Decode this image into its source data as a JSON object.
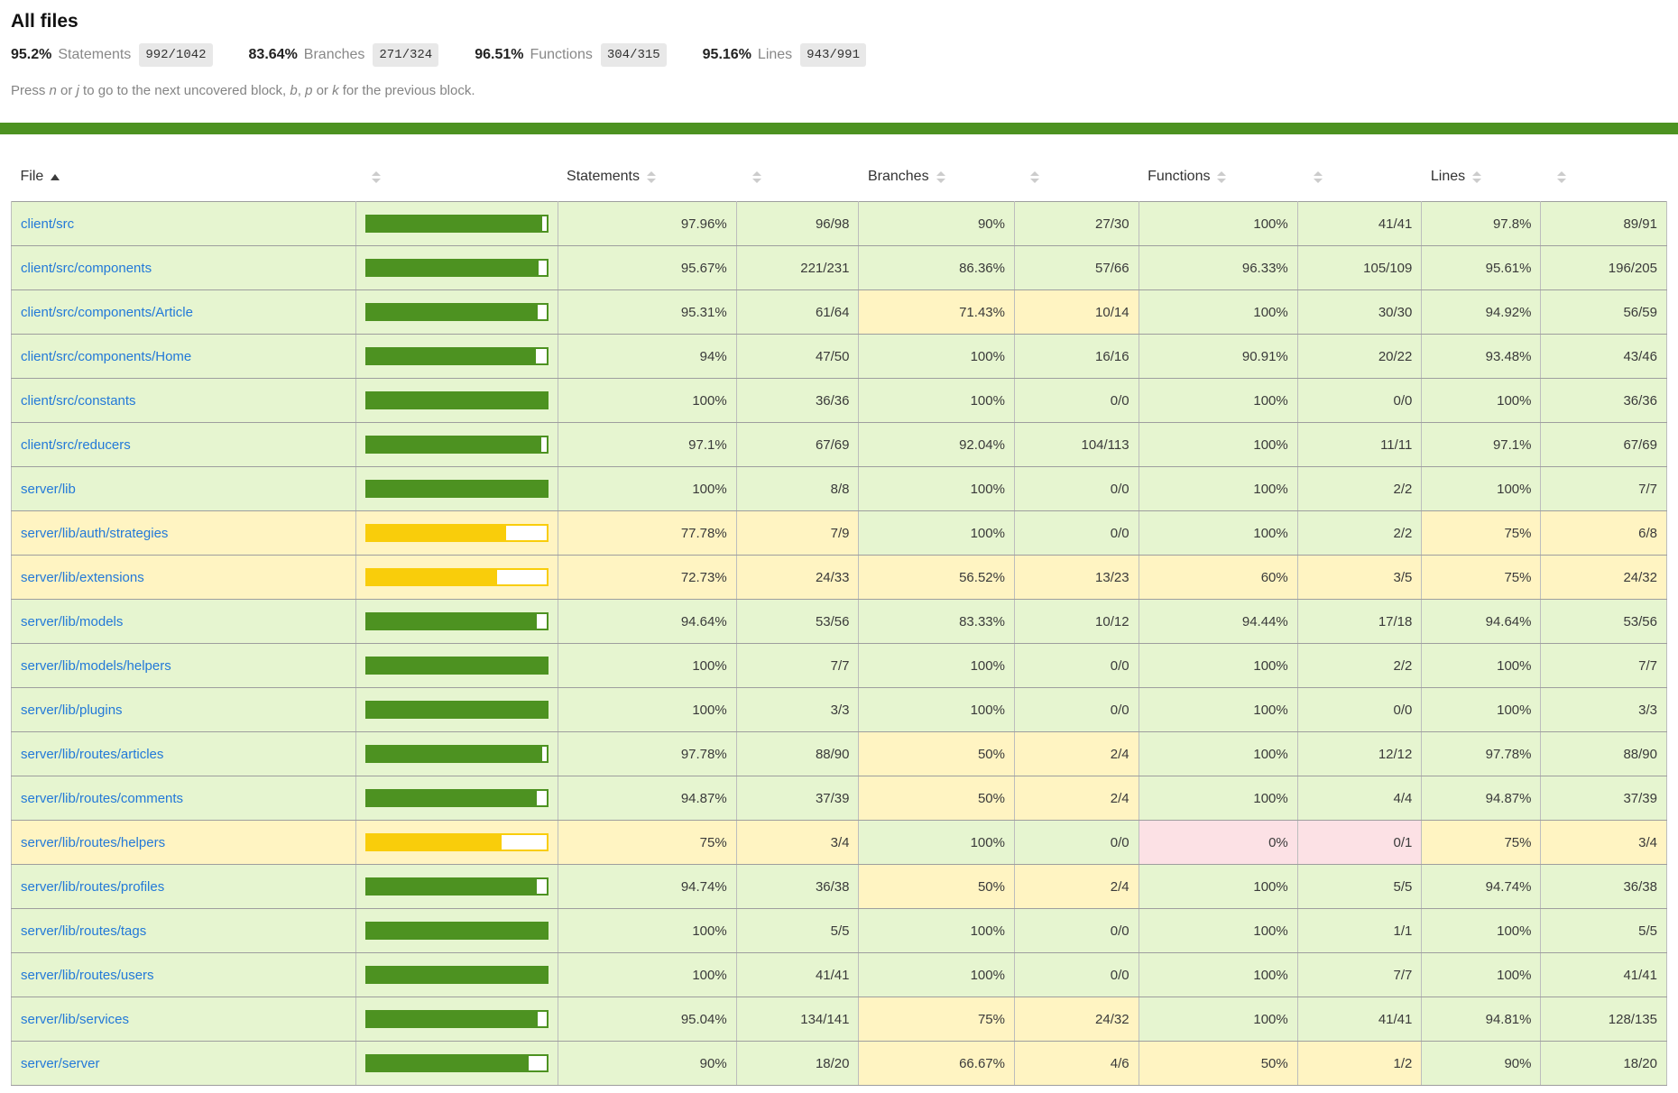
{
  "colors": {
    "accent_green": "#4d9221",
    "bar_yellow": "#f9cd0b",
    "bg_high": "#e6f5d0",
    "bg_medium": "#fff4c2",
    "bg_low": "#fce1e5",
    "link_blue": "#2379d8",
    "pill_bg": "#e8e8e8"
  },
  "header": {
    "title": "All files",
    "summary": [
      {
        "pct": "95.2%",
        "label": "Statements",
        "frac": "992/1042"
      },
      {
        "pct": "83.64%",
        "label": "Branches",
        "frac": "271/324"
      },
      {
        "pct": "96.51%",
        "label": "Functions",
        "frac": "304/315"
      },
      {
        "pct": "95.16%",
        "label": "Lines",
        "frac": "943/991"
      }
    ],
    "hint_segments": [
      {
        "t": "Press "
      },
      {
        "t": "n",
        "i": true
      },
      {
        "t": " or "
      },
      {
        "t": "j",
        "i": true
      },
      {
        "t": " to go to the next uncovered block, "
      },
      {
        "t": "b",
        "i": true
      },
      {
        "t": ", "
      },
      {
        "t": "p",
        "i": true
      },
      {
        "t": " or "
      },
      {
        "t": "k",
        "i": true
      },
      {
        "t": " for the previous block."
      }
    ]
  },
  "table": {
    "columns": [
      {
        "label": "File",
        "type": "file",
        "sorted": "asc"
      },
      {
        "label": "",
        "type": "pic"
      },
      {
        "label": "Statements",
        "type": "pct"
      },
      {
        "label": "",
        "type": "abs"
      },
      {
        "label": "Branches",
        "type": "pct"
      },
      {
        "label": "",
        "type": "abs"
      },
      {
        "label": "Functions",
        "type": "pct"
      },
      {
        "label": "",
        "type": "abs"
      },
      {
        "label": "Lines",
        "type": "pct"
      },
      {
        "label": "",
        "type": "abs"
      }
    ],
    "rows": [
      {
        "file": "client/src",
        "file_level": "high",
        "bar_pct": 97.96,
        "bar_level": "high",
        "cells": [
          {
            "v": "97.96%",
            "level": "high"
          },
          {
            "v": "96/98",
            "level": "high"
          },
          {
            "v": "90%",
            "level": "high"
          },
          {
            "v": "27/30",
            "level": "high"
          },
          {
            "v": "100%",
            "level": "high"
          },
          {
            "v": "41/41",
            "level": "high"
          },
          {
            "v": "97.8%",
            "level": "high"
          },
          {
            "v": "89/91",
            "level": "high"
          }
        ]
      },
      {
        "file": "client/src/components",
        "file_level": "high",
        "bar_pct": 95.67,
        "bar_level": "high",
        "cells": [
          {
            "v": "95.67%",
            "level": "high"
          },
          {
            "v": "221/231",
            "level": "high"
          },
          {
            "v": "86.36%",
            "level": "high"
          },
          {
            "v": "57/66",
            "level": "high"
          },
          {
            "v": "96.33%",
            "level": "high"
          },
          {
            "v": "105/109",
            "level": "high"
          },
          {
            "v": "95.61%",
            "level": "high"
          },
          {
            "v": "196/205",
            "level": "high"
          }
        ]
      },
      {
        "file": "client/src/components/Article",
        "file_level": "high",
        "bar_pct": 95.31,
        "bar_level": "high",
        "cells": [
          {
            "v": "95.31%",
            "level": "high"
          },
          {
            "v": "61/64",
            "level": "high"
          },
          {
            "v": "71.43%",
            "level": "medium"
          },
          {
            "v": "10/14",
            "level": "medium"
          },
          {
            "v": "100%",
            "level": "high"
          },
          {
            "v": "30/30",
            "level": "high"
          },
          {
            "v": "94.92%",
            "level": "high"
          },
          {
            "v": "56/59",
            "level": "high"
          }
        ]
      },
      {
        "file": "client/src/components/Home",
        "file_level": "high",
        "bar_pct": 94,
        "bar_level": "high",
        "cells": [
          {
            "v": "94%",
            "level": "high"
          },
          {
            "v": "47/50",
            "level": "high"
          },
          {
            "v": "100%",
            "level": "high"
          },
          {
            "v": "16/16",
            "level": "high"
          },
          {
            "v": "90.91%",
            "level": "high"
          },
          {
            "v": "20/22",
            "level": "high"
          },
          {
            "v": "93.48%",
            "level": "high"
          },
          {
            "v": "43/46",
            "level": "high"
          }
        ]
      },
      {
        "file": "client/src/constants",
        "file_level": "high",
        "bar_pct": 100,
        "bar_level": "high",
        "cells": [
          {
            "v": "100%",
            "level": "high"
          },
          {
            "v": "36/36",
            "level": "high"
          },
          {
            "v": "100%",
            "level": "high"
          },
          {
            "v": "0/0",
            "level": "high"
          },
          {
            "v": "100%",
            "level": "high"
          },
          {
            "v": "0/0",
            "level": "high"
          },
          {
            "v": "100%",
            "level": "high"
          },
          {
            "v": "36/36",
            "level": "high"
          }
        ]
      },
      {
        "file": "client/src/reducers",
        "file_level": "high",
        "bar_pct": 97.1,
        "bar_level": "high",
        "cells": [
          {
            "v": "97.1%",
            "level": "high"
          },
          {
            "v": "67/69",
            "level": "high"
          },
          {
            "v": "92.04%",
            "level": "high"
          },
          {
            "v": "104/113",
            "level": "high"
          },
          {
            "v": "100%",
            "level": "high"
          },
          {
            "v": "11/11",
            "level": "high"
          },
          {
            "v": "97.1%",
            "level": "high"
          },
          {
            "v": "67/69",
            "level": "high"
          }
        ]
      },
      {
        "file": "server/lib",
        "file_level": "high",
        "bar_pct": 100,
        "bar_level": "high",
        "cells": [
          {
            "v": "100%",
            "level": "high"
          },
          {
            "v": "8/8",
            "level": "high"
          },
          {
            "v": "100%",
            "level": "high"
          },
          {
            "v": "0/0",
            "level": "high"
          },
          {
            "v": "100%",
            "level": "high"
          },
          {
            "v": "2/2",
            "level": "high"
          },
          {
            "v": "100%",
            "level": "high"
          },
          {
            "v": "7/7",
            "level": "high"
          }
        ]
      },
      {
        "file": "server/lib/auth/strategies",
        "file_level": "medium",
        "bar_pct": 77.78,
        "bar_level": "medium",
        "cells": [
          {
            "v": "77.78%",
            "level": "medium"
          },
          {
            "v": "7/9",
            "level": "medium"
          },
          {
            "v": "100%",
            "level": "high"
          },
          {
            "v": "0/0",
            "level": "high"
          },
          {
            "v": "100%",
            "level": "high"
          },
          {
            "v": "2/2",
            "level": "high"
          },
          {
            "v": "75%",
            "level": "medium"
          },
          {
            "v": "6/8",
            "level": "medium"
          }
        ]
      },
      {
        "file": "server/lib/extensions",
        "file_level": "medium",
        "bar_pct": 72.73,
        "bar_level": "medium",
        "cells": [
          {
            "v": "72.73%",
            "level": "medium"
          },
          {
            "v": "24/33",
            "level": "medium"
          },
          {
            "v": "56.52%",
            "level": "medium"
          },
          {
            "v": "13/23",
            "level": "medium"
          },
          {
            "v": "60%",
            "level": "medium"
          },
          {
            "v": "3/5",
            "level": "medium"
          },
          {
            "v": "75%",
            "level": "medium"
          },
          {
            "v": "24/32",
            "level": "medium"
          }
        ]
      },
      {
        "file": "server/lib/models",
        "file_level": "high",
        "bar_pct": 94.64,
        "bar_level": "high",
        "cells": [
          {
            "v": "94.64%",
            "level": "high"
          },
          {
            "v": "53/56",
            "level": "high"
          },
          {
            "v": "83.33%",
            "level": "high"
          },
          {
            "v": "10/12",
            "level": "high"
          },
          {
            "v": "94.44%",
            "level": "high"
          },
          {
            "v": "17/18",
            "level": "high"
          },
          {
            "v": "94.64%",
            "level": "high"
          },
          {
            "v": "53/56",
            "level": "high"
          }
        ]
      },
      {
        "file": "server/lib/models/helpers",
        "file_level": "high",
        "bar_pct": 100,
        "bar_level": "high",
        "cells": [
          {
            "v": "100%",
            "level": "high"
          },
          {
            "v": "7/7",
            "level": "high"
          },
          {
            "v": "100%",
            "level": "high"
          },
          {
            "v": "0/0",
            "level": "high"
          },
          {
            "v": "100%",
            "level": "high"
          },
          {
            "v": "2/2",
            "level": "high"
          },
          {
            "v": "100%",
            "level": "high"
          },
          {
            "v": "7/7",
            "level": "high"
          }
        ]
      },
      {
        "file": "server/lib/plugins",
        "file_level": "high",
        "bar_pct": 100,
        "bar_level": "high",
        "cells": [
          {
            "v": "100%",
            "level": "high"
          },
          {
            "v": "3/3",
            "level": "high"
          },
          {
            "v": "100%",
            "level": "high"
          },
          {
            "v": "0/0",
            "level": "high"
          },
          {
            "v": "100%",
            "level": "high"
          },
          {
            "v": "0/0",
            "level": "high"
          },
          {
            "v": "100%",
            "level": "high"
          },
          {
            "v": "3/3",
            "level": "high"
          }
        ]
      },
      {
        "file": "server/lib/routes/articles",
        "file_level": "high",
        "bar_pct": 97.78,
        "bar_level": "high",
        "cells": [
          {
            "v": "97.78%",
            "level": "high"
          },
          {
            "v": "88/90",
            "level": "high"
          },
          {
            "v": "50%",
            "level": "medium"
          },
          {
            "v": "2/4",
            "level": "medium"
          },
          {
            "v": "100%",
            "level": "high"
          },
          {
            "v": "12/12",
            "level": "high"
          },
          {
            "v": "97.78%",
            "level": "high"
          },
          {
            "v": "88/90",
            "level": "high"
          }
        ]
      },
      {
        "file": "server/lib/routes/comments",
        "file_level": "high",
        "bar_pct": 94.87,
        "bar_level": "high",
        "cells": [
          {
            "v": "94.87%",
            "level": "high"
          },
          {
            "v": "37/39",
            "level": "high"
          },
          {
            "v": "50%",
            "level": "medium"
          },
          {
            "v": "2/4",
            "level": "medium"
          },
          {
            "v": "100%",
            "level": "high"
          },
          {
            "v": "4/4",
            "level": "high"
          },
          {
            "v": "94.87%",
            "level": "high"
          },
          {
            "v": "37/39",
            "level": "high"
          }
        ]
      },
      {
        "file": "server/lib/routes/helpers",
        "file_level": "medium",
        "bar_pct": 75,
        "bar_level": "medium",
        "cells": [
          {
            "v": "75%",
            "level": "medium"
          },
          {
            "v": "3/4",
            "level": "medium"
          },
          {
            "v": "100%",
            "level": "high"
          },
          {
            "v": "0/0",
            "level": "high"
          },
          {
            "v": "0%",
            "level": "low"
          },
          {
            "v": "0/1",
            "level": "low"
          },
          {
            "v": "75%",
            "level": "medium"
          },
          {
            "v": "3/4",
            "level": "medium"
          }
        ]
      },
      {
        "file": "server/lib/routes/profiles",
        "file_level": "high",
        "bar_pct": 94.74,
        "bar_level": "high",
        "cells": [
          {
            "v": "94.74%",
            "level": "high"
          },
          {
            "v": "36/38",
            "level": "high"
          },
          {
            "v": "50%",
            "level": "medium"
          },
          {
            "v": "2/4",
            "level": "medium"
          },
          {
            "v": "100%",
            "level": "high"
          },
          {
            "v": "5/5",
            "level": "high"
          },
          {
            "v": "94.74%",
            "level": "high"
          },
          {
            "v": "36/38",
            "level": "high"
          }
        ]
      },
      {
        "file": "server/lib/routes/tags",
        "file_level": "high",
        "bar_pct": 100,
        "bar_level": "high",
        "cells": [
          {
            "v": "100%",
            "level": "high"
          },
          {
            "v": "5/5",
            "level": "high"
          },
          {
            "v": "100%",
            "level": "high"
          },
          {
            "v": "0/0",
            "level": "high"
          },
          {
            "v": "100%",
            "level": "high"
          },
          {
            "v": "1/1",
            "level": "high"
          },
          {
            "v": "100%",
            "level": "high"
          },
          {
            "v": "5/5",
            "level": "high"
          }
        ]
      },
      {
        "file": "server/lib/routes/users",
        "file_level": "high",
        "bar_pct": 100,
        "bar_level": "high",
        "cells": [
          {
            "v": "100%",
            "level": "high"
          },
          {
            "v": "41/41",
            "level": "high"
          },
          {
            "v": "100%",
            "level": "high"
          },
          {
            "v": "0/0",
            "level": "high"
          },
          {
            "v": "100%",
            "level": "high"
          },
          {
            "v": "7/7",
            "level": "high"
          },
          {
            "v": "100%",
            "level": "high"
          },
          {
            "v": "41/41",
            "level": "high"
          }
        ]
      },
      {
        "file": "server/lib/services",
        "file_level": "high",
        "bar_pct": 95.04,
        "bar_level": "high",
        "cells": [
          {
            "v": "95.04%",
            "level": "high"
          },
          {
            "v": "134/141",
            "level": "high"
          },
          {
            "v": "75%",
            "level": "medium"
          },
          {
            "v": "24/32",
            "level": "medium"
          },
          {
            "v": "100%",
            "level": "high"
          },
          {
            "v": "41/41",
            "level": "high"
          },
          {
            "v": "94.81%",
            "level": "high"
          },
          {
            "v": "128/135",
            "level": "high"
          }
        ]
      },
      {
        "file": "server/server",
        "file_level": "high",
        "bar_pct": 90,
        "bar_level": "high",
        "cells": [
          {
            "v": "90%",
            "level": "high"
          },
          {
            "v": "18/20",
            "level": "high"
          },
          {
            "v": "66.67%",
            "level": "medium"
          },
          {
            "v": "4/6",
            "level": "medium"
          },
          {
            "v": "50%",
            "level": "medium"
          },
          {
            "v": "1/2",
            "level": "medium"
          },
          {
            "v": "90%",
            "level": "high"
          },
          {
            "v": "18/20",
            "level": "high"
          }
        ]
      }
    ]
  }
}
